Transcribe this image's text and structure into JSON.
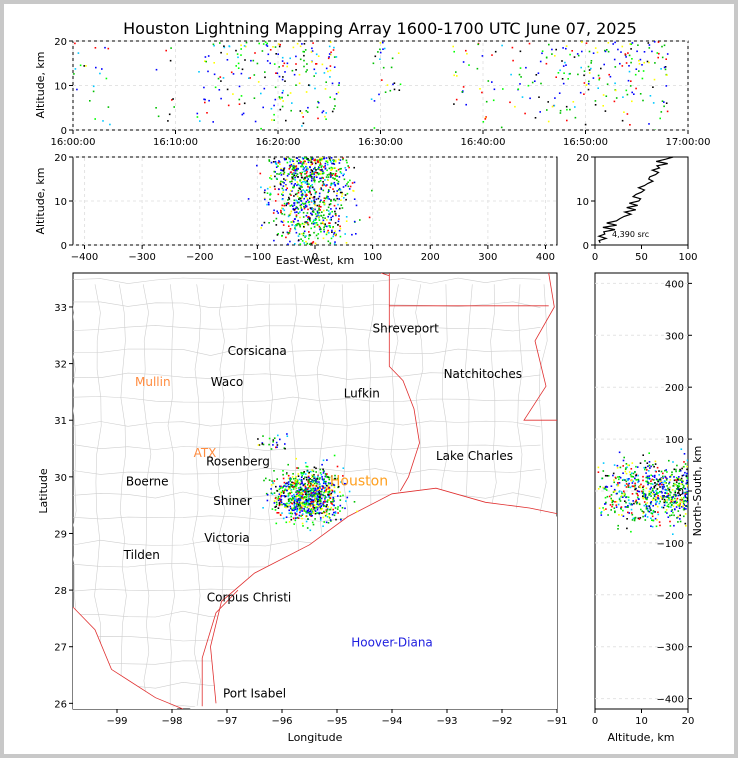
{
  "title": "Houston Lightning Mapping Array 1600-1700 UTC June 07, 2025",
  "chart_data": [
    {
      "id": "time_height",
      "type": "scatter",
      "ylabel": "Altitude, km",
      "xlim": [
        "16:00:00",
        "17:00:00"
      ],
      "ylim": [
        0,
        20
      ],
      "xticks": [
        "16:00:00",
        "16:10:00",
        "16:20:00",
        "16:30:00",
        "16:40:00",
        "16:50:00",
        "17:00:00"
      ],
      "yticks": [
        "0",
        "10",
        "20"
      ],
      "activity_bursts_minutes_after_1600": [
        {
          "start": 0,
          "end": 4,
          "density": 0.3
        },
        {
          "start": 8,
          "end": 10,
          "density": 0.3
        },
        {
          "start": 12,
          "end": 16,
          "density": 0.6
        },
        {
          "start": 16,
          "end": 26,
          "density": 1.0
        },
        {
          "start": 29,
          "end": 32,
          "density": 0.5
        },
        {
          "start": 37,
          "end": 46,
          "density": 0.4
        },
        {
          "start": 46,
          "end": 54,
          "density": 0.8
        },
        {
          "start": 54,
          "end": 58,
          "density": 1.0
        }
      ]
    },
    {
      "id": "ew_height",
      "type": "scatter",
      "xlabel": "East-West, km",
      "ylabel": "Altitude, km",
      "xlim": [
        -420,
        420
      ],
      "ylim": [
        0,
        20
      ],
      "xticks": [
        "−400",
        "−300",
        "−200",
        "−100",
        "0",
        "100",
        "200",
        "300",
        "400"
      ],
      "yticks": [
        "0",
        "10",
        "20"
      ],
      "cluster": {
        "center_ew_km": -10,
        "spread_ew_km": 35,
        "alt_range_km": [
          0,
          20
        ]
      }
    },
    {
      "id": "histogram",
      "type": "line",
      "xlim": [
        0,
        100
      ],
      "ylim": [
        0,
        20
      ],
      "xticks": [
        "0",
        "50",
        "100"
      ],
      "yticks": [
        "0",
        "10",
        "20"
      ],
      "annotation": "4,390 src",
      "profile": [
        [
          5,
          0.5
        ],
        [
          8,
          1.5
        ],
        [
          10,
          2.5
        ],
        [
          15,
          3.5
        ],
        [
          18,
          4.5
        ],
        [
          25,
          5.5
        ],
        [
          35,
          6.5
        ],
        [
          38,
          7.5
        ],
        [
          40,
          8.5
        ],
        [
          42,
          9.5
        ],
        [
          45,
          10.5
        ],
        [
          47,
          11.5
        ],
        [
          50,
          12.5
        ],
        [
          55,
          13.5
        ],
        [
          60,
          14.5
        ],
        [
          62,
          15.5
        ],
        [
          65,
          16.5
        ],
        [
          68,
          17.5
        ],
        [
          72,
          18.5
        ],
        [
          80,
          19.5
        ]
      ]
    },
    {
      "id": "plan_view",
      "type": "scatter",
      "xlabel": "Longitude",
      "ylabel": "Latitude",
      "xlim": [
        -99.8,
        -91
      ],
      "ylim": [
        25.9,
        33.6
      ],
      "xticks": [
        "−99",
        "−98",
        "−97",
        "−96",
        "−95",
        "−94",
        "−93",
        "−92",
        "−91"
      ],
      "yticks": [
        "26",
        "27",
        "28",
        "29",
        "30",
        "31",
        "32",
        "33"
      ],
      "cluster": {
        "center_lon": -95.55,
        "center_lat": 29.7,
        "spread_lon": 0.3,
        "spread_lat": 0.3
      },
      "cities": [
        {
          "name": "Shreveport",
          "lon": -93.75,
          "lat": 32.55,
          "color": "#000000"
        },
        {
          "name": "Corsicana",
          "lon": -96.45,
          "lat": 32.15,
          "color": "#000000"
        },
        {
          "name": "Natchitoches",
          "lon": -92.35,
          "lat": 31.75,
          "color": "#000000"
        },
        {
          "name": "Mullin",
          "lon": -98.35,
          "lat": 31.6,
          "color": "#ff8c40"
        },
        {
          "name": "Waco",
          "lon": -97.0,
          "lat": 31.6,
          "color": "#000000"
        },
        {
          "name": "Lufkin",
          "lon": -94.55,
          "lat": 31.4,
          "color": "#000000"
        },
        {
          "name": "ATX",
          "lon": -97.4,
          "lat": 30.35,
          "color": "#ff8c40"
        },
        {
          "name": "Lake Charles",
          "lon": -92.5,
          "lat": 30.3,
          "color": "#000000"
        },
        {
          "name": "Rosenberg",
          "lon": -96.8,
          "lat": 30.2,
          "color": "#000000"
        },
        {
          "name": "Houston",
          "lon": -94.6,
          "lat": 29.85,
          "color": "#ffa020"
        },
        {
          "name": "Boerne",
          "lon": -98.45,
          "lat": 29.85,
          "color": "#000000"
        },
        {
          "name": "Shiner",
          "lon": -96.9,
          "lat": 29.5,
          "color": "#000000"
        },
        {
          "name": "Victoria",
          "lon": -97.0,
          "lat": 28.85,
          "color": "#000000"
        },
        {
          "name": "Tilden",
          "lon": -98.55,
          "lat": 28.55,
          "color": "#000000"
        },
        {
          "name": "Corpus Christi",
          "lon": -96.6,
          "lat": 27.8,
          "color": "#000000"
        },
        {
          "name": "Hoover-Diana",
          "lon": -94.0,
          "lat": 27.0,
          "color": "#2020e0"
        },
        {
          "name": "Port Isabel",
          "lon": -96.5,
          "lat": 26.1,
          "color": "#000000"
        }
      ]
    },
    {
      "id": "ns_height",
      "type": "scatter",
      "xlabel": "Altitude, km",
      "ylabel": "North-South, km",
      "xlim": [
        0,
        20
      ],
      "ylim": [
        -420,
        420
      ],
      "xticks": [
        "0",
        "10",
        "20"
      ],
      "yticks": [
        "−400",
        "−300",
        "−200",
        "−100",
        "0",
        "100",
        "200",
        "300",
        "400"
      ],
      "cluster": {
        "center_ns_km": 0,
        "spread_ns_km": 30,
        "alt_range_km": [
          0,
          20
        ]
      }
    }
  ]
}
